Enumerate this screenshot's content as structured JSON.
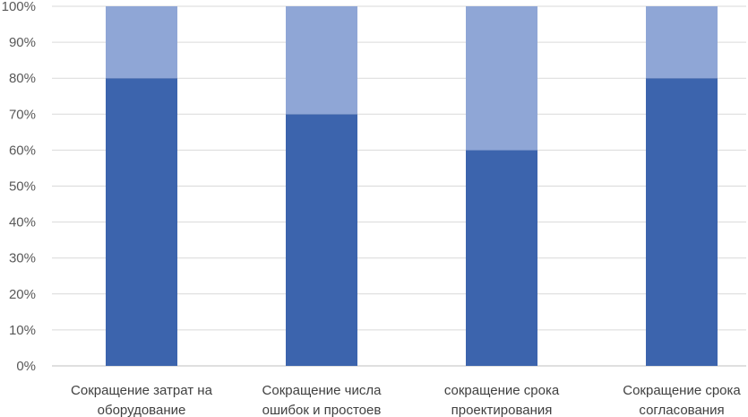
{
  "chart_data": {
    "type": "bar",
    "stacked": true,
    "percent": true,
    "categories": [
      [
        "Сокращение затрат на",
        "оборудование"
      ],
      [
        "Сокращение числа",
        "ошибок и простоев"
      ],
      [
        "сокращение срока",
        "проектирования"
      ],
      [
        "Сокращение срока",
        "согласования"
      ]
    ],
    "series": [
      {
        "color": "#3c64ad",
        "values": [
          80,
          70,
          60,
          80
        ]
      },
      {
        "color": "#8fa6d6",
        "values": [
          20,
          30,
          40,
          20
        ]
      }
    ],
    "ylim": [
      0,
      100
    ],
    "yticks": [
      "0%",
      "10%",
      "20%",
      "30%",
      "40%",
      "50%",
      "60%",
      "70%",
      "80%",
      "90%",
      "100%"
    ],
    "grid": true,
    "legend": "none",
    "title": "",
    "xlabel": "",
    "ylabel": ""
  }
}
